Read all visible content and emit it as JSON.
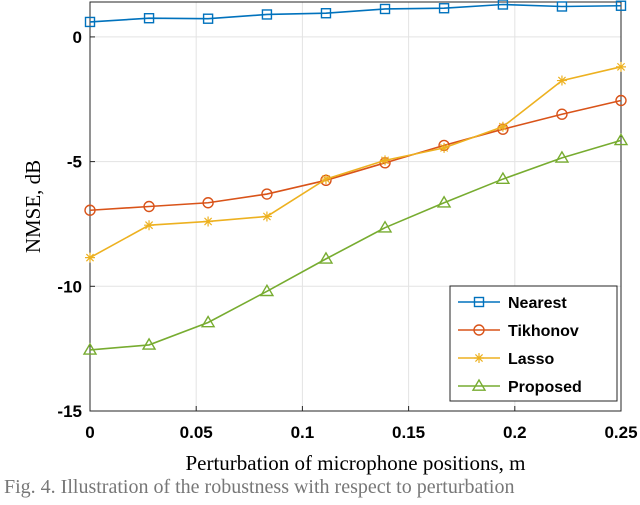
{
  "chart_data": {
    "type": "line",
    "xlabel": "Perturbation of microphone positions, m",
    "ylabel": "NMSE, dB",
    "xlim": [
      0,
      0.25
    ],
    "ylim": [
      -15,
      1.4
    ],
    "xticks": [
      0,
      0.05,
      0.1,
      0.15,
      0.2,
      0.25
    ],
    "xtick_labels": [
      "0",
      "0.05",
      "0.1",
      "0.15",
      "0.2",
      "0.25"
    ],
    "yticks": [
      0,
      -5,
      -10,
      -15
    ],
    "ytick_labels": [
      "0",
      "-5",
      "-10",
      "-15"
    ],
    "grid": true,
    "legend_position": "bottom-right",
    "x": [
      0,
      0.0278,
      0.0556,
      0.0833,
      0.1111,
      0.1389,
      0.1667,
      0.1944,
      0.2222,
      0.25
    ],
    "series": [
      {
        "name": "Nearest",
        "color": "#0072bd",
        "marker": "square",
        "values": [
          0.6,
          0.75,
          0.73,
          0.9,
          0.95,
          1.12,
          1.15,
          1.3,
          1.22,
          1.25
        ]
      },
      {
        "name": "Tikhonov",
        "color": "#d95319",
        "marker": "circle",
        "values": [
          -6.95,
          -6.8,
          -6.65,
          -6.3,
          -5.75,
          -5.05,
          -4.35,
          -3.7,
          -3.1,
          -2.55
        ]
      },
      {
        "name": "Lasso",
        "color": "#edb120",
        "marker": "star",
        "values": [
          -8.85,
          -7.55,
          -7.4,
          -7.2,
          -5.7,
          -4.95,
          -4.45,
          -3.6,
          -1.75,
          -1.2
        ]
      },
      {
        "name": "Proposed",
        "color": "#77ac30",
        "marker": "triangle",
        "values": [
          -12.55,
          -12.35,
          -11.45,
          -10.2,
          -8.9,
          -7.65,
          -6.65,
          -5.7,
          -4.85,
          -4.15
        ]
      }
    ]
  },
  "caption": "Fig. 4. Illustration of the robustness with respect to perturbation"
}
